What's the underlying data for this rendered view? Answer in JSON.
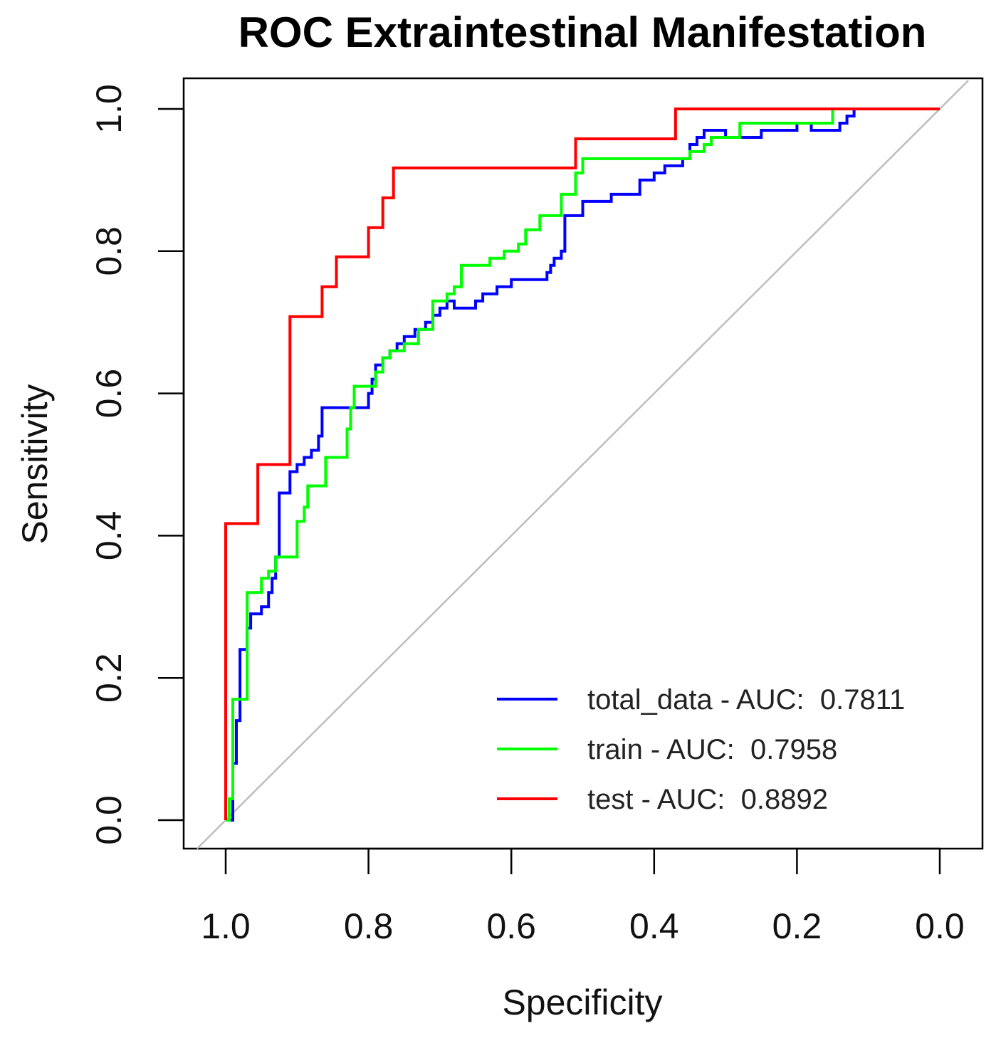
{
  "chart_data": {
    "type": "line",
    "title": "ROC Extraintestinal Manifestation",
    "xlabel": "Specificity",
    "ylabel": "Sensitivity",
    "xlim": [
      1.0,
      0.0
    ],
    "ylim": [
      0.0,
      1.0
    ],
    "x_reversed": true,
    "x_ticks": [
      "1.0",
      "0.8",
      "0.6",
      "0.4",
      "0.2",
      "0.0"
    ],
    "y_ticks": [
      "0.0",
      "0.2",
      "0.4",
      "0.6",
      "0.8",
      "1.0"
    ],
    "legend_position": "bottom-right",
    "reference_line": {
      "from": [
        1.0,
        0.0
      ],
      "to": [
        0.0,
        1.0
      ],
      "color": "#bebebe"
    },
    "series": [
      {
        "name": "total_data - AUC:  0.7811",
        "color": "#0000ff",
        "points": [
          [
            1.0,
            0.0
          ],
          [
            0.99,
            0.0
          ],
          [
            0.99,
            0.08
          ],
          [
            0.985,
            0.08
          ],
          [
            0.985,
            0.14
          ],
          [
            0.98,
            0.14
          ],
          [
            0.98,
            0.24
          ],
          [
            0.97,
            0.24
          ],
          [
            0.97,
            0.27
          ],
          [
            0.965,
            0.27
          ],
          [
            0.965,
            0.29
          ],
          [
            0.95,
            0.29
          ],
          [
            0.95,
            0.3
          ],
          [
            0.94,
            0.3
          ],
          [
            0.94,
            0.32
          ],
          [
            0.935,
            0.32
          ],
          [
            0.935,
            0.34
          ],
          [
            0.93,
            0.34
          ],
          [
            0.93,
            0.37
          ],
          [
            0.925,
            0.37
          ],
          [
            0.925,
            0.46
          ],
          [
            0.91,
            0.46
          ],
          [
            0.91,
            0.49
          ],
          [
            0.9,
            0.49
          ],
          [
            0.9,
            0.5
          ],
          [
            0.89,
            0.5
          ],
          [
            0.89,
            0.51
          ],
          [
            0.88,
            0.51
          ],
          [
            0.88,
            0.52
          ],
          [
            0.87,
            0.52
          ],
          [
            0.87,
            0.54
          ],
          [
            0.865,
            0.54
          ],
          [
            0.865,
            0.58
          ],
          [
            0.8,
            0.58
          ],
          [
            0.8,
            0.6
          ],
          [
            0.795,
            0.6
          ],
          [
            0.795,
            0.62
          ],
          [
            0.79,
            0.62
          ],
          [
            0.79,
            0.64
          ],
          [
            0.78,
            0.64
          ],
          [
            0.78,
            0.65
          ],
          [
            0.77,
            0.65
          ],
          [
            0.77,
            0.66
          ],
          [
            0.76,
            0.66
          ],
          [
            0.76,
            0.67
          ],
          [
            0.75,
            0.67
          ],
          [
            0.75,
            0.68
          ],
          [
            0.735,
            0.68
          ],
          [
            0.735,
            0.69
          ],
          [
            0.72,
            0.69
          ],
          [
            0.72,
            0.7
          ],
          [
            0.71,
            0.7
          ],
          [
            0.71,
            0.71
          ],
          [
            0.7,
            0.71
          ],
          [
            0.7,
            0.72
          ],
          [
            0.69,
            0.72
          ],
          [
            0.69,
            0.73
          ],
          [
            0.68,
            0.73
          ],
          [
            0.68,
            0.72
          ],
          [
            0.65,
            0.72
          ],
          [
            0.65,
            0.73
          ],
          [
            0.64,
            0.73
          ],
          [
            0.64,
            0.74
          ],
          [
            0.62,
            0.74
          ],
          [
            0.62,
            0.75
          ],
          [
            0.6,
            0.75
          ],
          [
            0.6,
            0.76
          ],
          [
            0.55,
            0.76
          ],
          [
            0.55,
            0.77
          ],
          [
            0.545,
            0.77
          ],
          [
            0.545,
            0.78
          ],
          [
            0.54,
            0.78
          ],
          [
            0.54,
            0.79
          ],
          [
            0.53,
            0.79
          ],
          [
            0.53,
            0.8
          ],
          [
            0.525,
            0.8
          ],
          [
            0.525,
            0.85
          ],
          [
            0.5,
            0.85
          ],
          [
            0.5,
            0.87
          ],
          [
            0.46,
            0.87
          ],
          [
            0.46,
            0.88
          ],
          [
            0.42,
            0.88
          ],
          [
            0.42,
            0.9
          ],
          [
            0.4,
            0.9
          ],
          [
            0.4,
            0.91
          ],
          [
            0.385,
            0.91
          ],
          [
            0.385,
            0.92
          ],
          [
            0.36,
            0.92
          ],
          [
            0.36,
            0.93
          ],
          [
            0.35,
            0.93
          ],
          [
            0.35,
            0.95
          ],
          [
            0.34,
            0.95
          ],
          [
            0.34,
            0.96
          ],
          [
            0.33,
            0.96
          ],
          [
            0.33,
            0.97
          ],
          [
            0.3,
            0.97
          ],
          [
            0.3,
            0.96
          ],
          [
            0.25,
            0.96
          ],
          [
            0.25,
            0.97
          ],
          [
            0.2,
            0.97
          ],
          [
            0.2,
            0.98
          ],
          [
            0.18,
            0.98
          ],
          [
            0.18,
            0.97
          ],
          [
            0.14,
            0.97
          ],
          [
            0.14,
            0.98
          ],
          [
            0.13,
            0.98
          ],
          [
            0.13,
            0.99
          ],
          [
            0.12,
            0.99
          ],
          [
            0.12,
            1.0
          ],
          [
            0.0,
            1.0
          ]
        ]
      },
      {
        "name": "train - AUC:  0.7958",
        "color": "#00ff00",
        "points": [
          [
            1.0,
            0.0
          ],
          [
            0.995,
            0.0
          ],
          [
            0.995,
            0.03
          ],
          [
            0.99,
            0.03
          ],
          [
            0.99,
            0.17
          ],
          [
            0.97,
            0.17
          ],
          [
            0.97,
            0.24
          ],
          [
            0.97,
            0.27
          ],
          [
            0.97,
            0.32
          ],
          [
            0.95,
            0.32
          ],
          [
            0.95,
            0.34
          ],
          [
            0.94,
            0.34
          ],
          [
            0.94,
            0.35
          ],
          [
            0.93,
            0.35
          ],
          [
            0.93,
            0.37
          ],
          [
            0.9,
            0.37
          ],
          [
            0.9,
            0.42
          ],
          [
            0.89,
            0.42
          ],
          [
            0.89,
            0.44
          ],
          [
            0.885,
            0.44
          ],
          [
            0.885,
            0.47
          ],
          [
            0.86,
            0.47
          ],
          [
            0.86,
            0.51
          ],
          [
            0.83,
            0.51
          ],
          [
            0.83,
            0.55
          ],
          [
            0.825,
            0.55
          ],
          [
            0.825,
            0.58
          ],
          [
            0.82,
            0.58
          ],
          [
            0.82,
            0.61
          ],
          [
            0.79,
            0.61
          ],
          [
            0.79,
            0.63
          ],
          [
            0.78,
            0.63
          ],
          [
            0.78,
            0.65
          ],
          [
            0.77,
            0.65
          ],
          [
            0.77,
            0.66
          ],
          [
            0.75,
            0.66
          ],
          [
            0.75,
            0.67
          ],
          [
            0.73,
            0.67
          ],
          [
            0.73,
            0.69
          ],
          [
            0.71,
            0.69
          ],
          [
            0.71,
            0.73
          ],
          [
            0.69,
            0.73
          ],
          [
            0.69,
            0.74
          ],
          [
            0.68,
            0.74
          ],
          [
            0.68,
            0.75
          ],
          [
            0.67,
            0.75
          ],
          [
            0.67,
            0.78
          ],
          [
            0.63,
            0.78
          ],
          [
            0.63,
            0.79
          ],
          [
            0.61,
            0.79
          ],
          [
            0.61,
            0.8
          ],
          [
            0.59,
            0.8
          ],
          [
            0.59,
            0.81
          ],
          [
            0.58,
            0.81
          ],
          [
            0.58,
            0.83
          ],
          [
            0.56,
            0.83
          ],
          [
            0.56,
            0.85
          ],
          [
            0.53,
            0.85
          ],
          [
            0.53,
            0.88
          ],
          [
            0.51,
            0.88
          ],
          [
            0.51,
            0.91
          ],
          [
            0.5,
            0.91
          ],
          [
            0.5,
            0.93
          ],
          [
            0.35,
            0.93
          ],
          [
            0.35,
            0.94
          ],
          [
            0.33,
            0.94
          ],
          [
            0.33,
            0.95
          ],
          [
            0.32,
            0.95
          ],
          [
            0.32,
            0.96
          ],
          [
            0.28,
            0.96
          ],
          [
            0.28,
            0.98
          ],
          [
            0.15,
            0.98
          ],
          [
            0.15,
            1.0
          ],
          [
            0.0,
            1.0
          ]
        ]
      },
      {
        "name": "test - AUC:  0.8892",
        "color": "#ff0000",
        "points": [
          [
            1.0,
            0.0
          ],
          [
            1.0,
            0.417
          ],
          [
            0.955,
            0.417
          ],
          [
            0.955,
            0.5
          ],
          [
            0.91,
            0.5
          ],
          [
            0.91,
            0.708
          ],
          [
            0.865,
            0.708
          ],
          [
            0.865,
            0.75
          ],
          [
            0.845,
            0.75
          ],
          [
            0.845,
            0.792
          ],
          [
            0.8,
            0.792
          ],
          [
            0.8,
            0.833
          ],
          [
            0.78,
            0.833
          ],
          [
            0.78,
            0.875
          ],
          [
            0.765,
            0.875
          ],
          [
            0.765,
            0.917
          ],
          [
            0.51,
            0.917
          ],
          [
            0.51,
            0.958
          ],
          [
            0.37,
            0.958
          ],
          [
            0.37,
            1.0
          ],
          [
            0.0,
            1.0
          ]
        ]
      }
    ]
  }
}
